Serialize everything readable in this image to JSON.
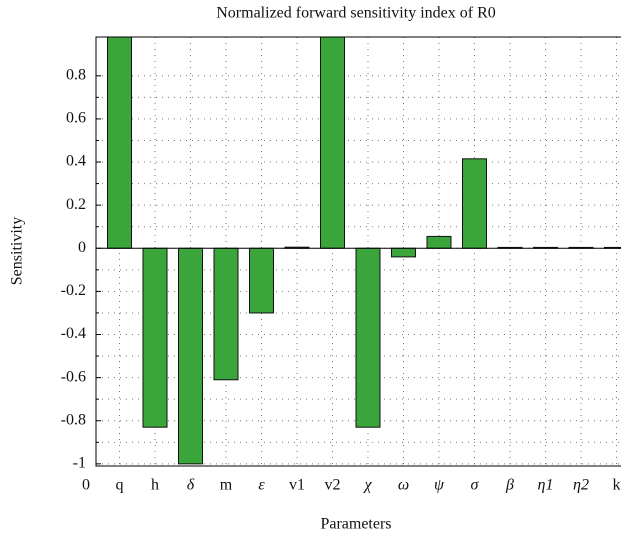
{
  "chart_data": {
    "type": "bar",
    "title": "Normalized forward sensitivity index of R0",
    "x_label": "Parameters",
    "y_label": "Sensitivity",
    "categories": [
      "0",
      "q",
      "h",
      "δ",
      "m",
      "ε",
      "v1",
      "v2",
      "χ",
      "ω",
      "ψ",
      "σ",
      "β",
      "η1",
      "η2",
      "k"
    ],
    "values": [
      null,
      1.0,
      -0.83,
      -1.0,
      -0.61,
      -0.3,
      0.005,
      1.0,
      -0.83,
      -0.04,
      0.055,
      0.415,
      0.004,
      0.004,
      0.004,
      0.004
    ],
    "color": "#3aa53a",
    "ylim": [
      -1.01,
      0.98
    ],
    "yticks": [
      -1,
      -0.8,
      -0.6,
      -0.4,
      -0.2,
      0,
      0.2,
      0.4,
      0.6,
      0.8
    ],
    "grid": true
  }
}
